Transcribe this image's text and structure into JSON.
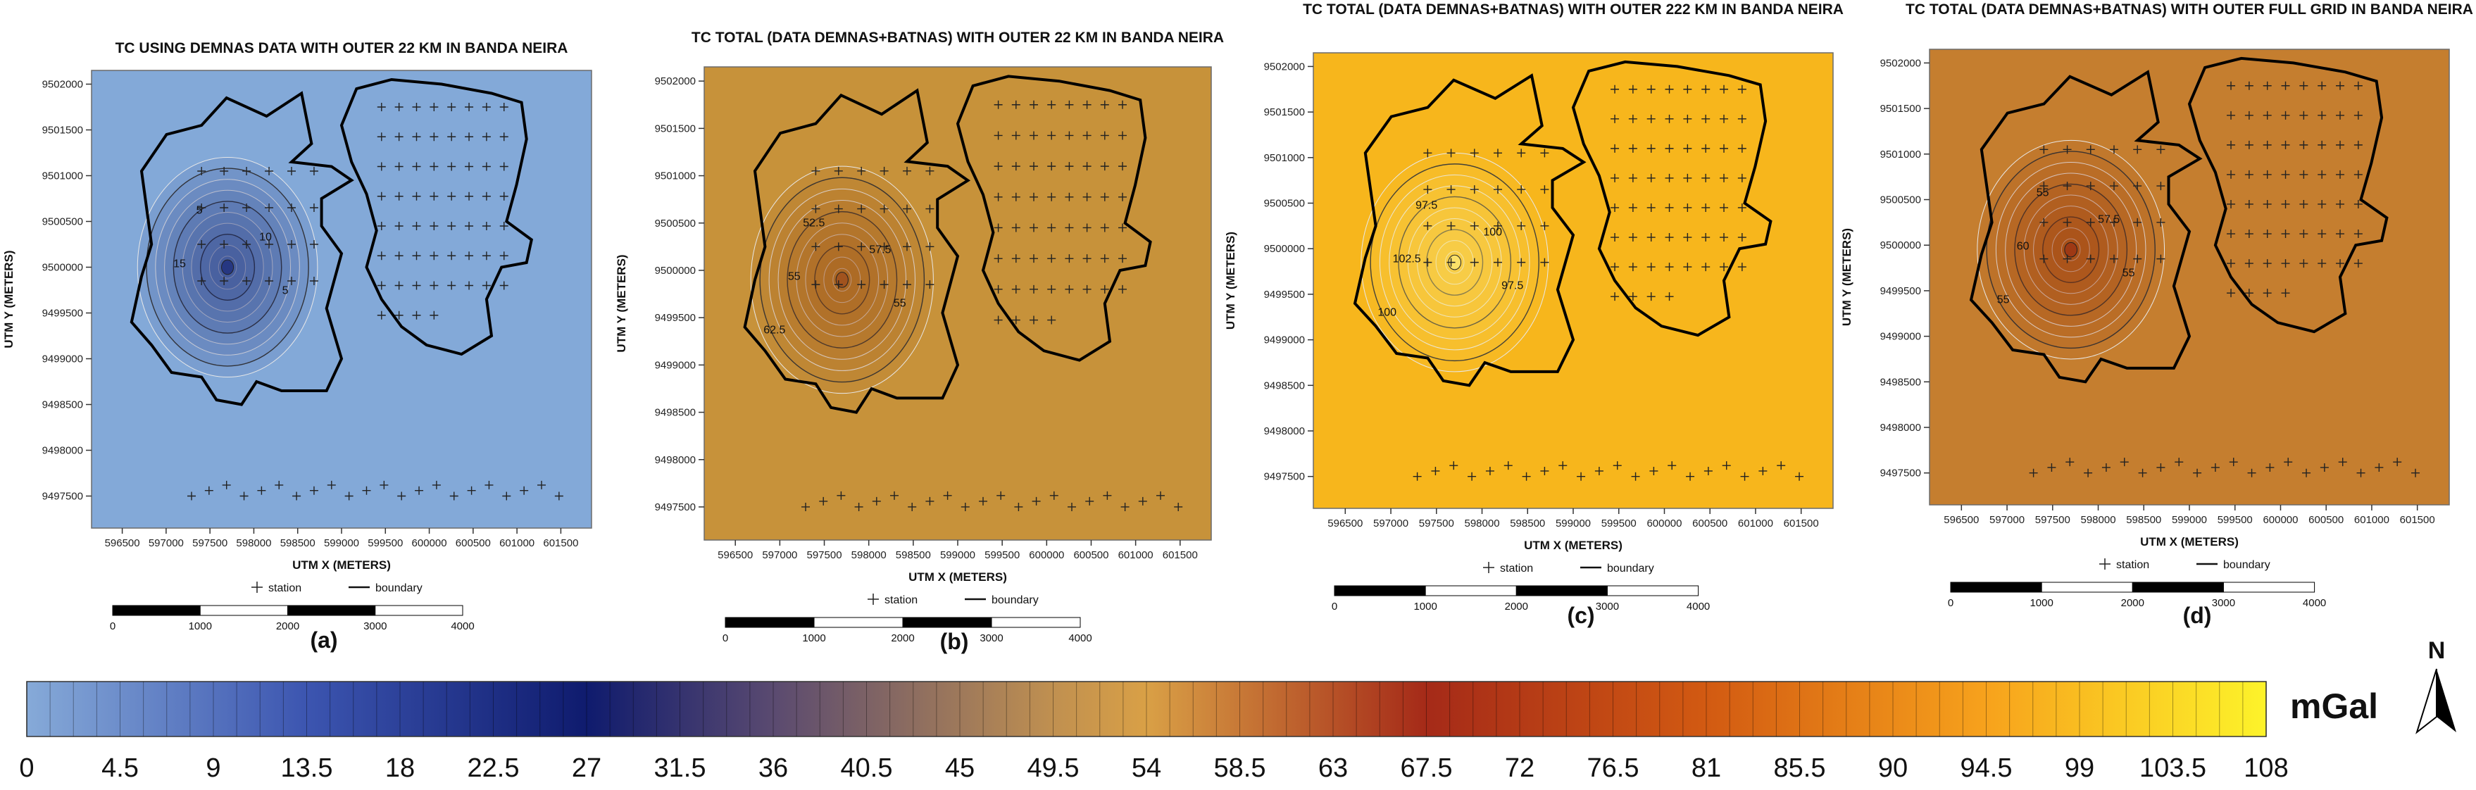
{
  "panels": [
    {
      "title": "TC USING DEMNAS DATA WITH OUTER 22 KM IN BANDA NEIRA",
      "xlabel": "UTM X (METERS)",
      "ylabel": "UTM Y (METERS)",
      "caption": "(a)",
      "bg": "#83a9d8",
      "accent": "#1a2878",
      "peak": {
        "x": 597700,
        "y": 9500000
      },
      "contours": [
        "5",
        "10",
        "15",
        "5"
      ],
      "legend_station": "station",
      "legend_boundary": "boundary",
      "scale_labels": [
        "0",
        "1000",
        "2000",
        "3000",
        "4000"
      ]
    },
    {
      "title": "TC TOTAL (DATA DEMNAS+BATNAS) WITH OUTER 22 KM IN BANDA NEIRA",
      "xlabel": "UTM X (METERS)",
      "ylabel": "UTM Y (METERS)",
      "caption": "(b)",
      "bg": "#c7923a",
      "accent": "#9c4a1d",
      "peak": {
        "x": 597700,
        "y": 9499900
      },
      "contours": [
        "52.5",
        "57.5",
        "55",
        "55",
        "62.5"
      ],
      "legend_station": "station",
      "legend_boundary": "boundary",
      "scale_labels": [
        "0",
        "1000",
        "2000",
        "3000",
        "4000"
      ]
    },
    {
      "title": "TC TOTAL (DATA DEMNAS+BATNAS) WITH OUTER 222 KM IN BANDA NEIRA",
      "xlabel": "UTM X (METERS)",
      "ylabel": "UTM Y (METERS)",
      "caption": "(c)",
      "bg": "#f7b61c",
      "accent": "#fde978",
      "peak": {
        "x": 597700,
        "y": 9499850
      },
      "contours": [
        "97.5",
        "100",
        "102.5",
        "97.5",
        "100"
      ],
      "legend_station": "station",
      "legend_boundary": "boundary",
      "scale_labels": [
        "0",
        "1000",
        "2000",
        "3000",
        "4000"
      ]
    },
    {
      "title": "TC TOTAL (DATA DEMNAS+BATNAS) WITH OUTER FULL GRID IN BANDA NEIRA",
      "xlabel": "UTM X (METERS)",
      "ylabel": "UTM Y (METERS)",
      "caption": "(d)",
      "bg": "#c57e2f",
      "accent": "#9a2f13",
      "peak": {
        "x": 597700,
        "y": 9499950
      },
      "contours": [
        "55",
        "57.5",
        "60",
        "55",
        "55"
      ],
      "legend_station": "station",
      "legend_boundary": "boundary",
      "scale_labels": [
        "0",
        "1000",
        "2000",
        "3000",
        "4000"
      ]
    }
  ],
  "chart_data": {
    "type": "heatmap",
    "x_ticks": [
      596500,
      597000,
      597500,
      598000,
      598500,
      599000,
      599500,
      600000,
      600500,
      601000,
      601500
    ],
    "y_ticks": [
      9497500,
      9498000,
      9498500,
      9499000,
      9499500,
      9500000,
      9500500,
      9501000,
      9501500,
      9502000
    ],
    "xlim": [
      596150,
      601850
    ],
    "ylim": [
      9497150,
      9502150
    ],
    "legend_station": "station",
    "legend_boundary": "boundary"
  },
  "colorbar": {
    "unit": "mGal",
    "north": "N",
    "min": 0,
    "max": 108,
    "labels": [
      "0",
      "4.5",
      "9",
      "13.5",
      "18",
      "22.5",
      "27",
      "31.5",
      "36",
      "40.5",
      "45",
      "49.5",
      "54",
      "58.5",
      "63",
      "67.5",
      "72",
      "76.5",
      "81",
      "85.5",
      "90",
      "94.5",
      "99",
      "103.5",
      "108"
    ],
    "colors": [
      "#86aad8",
      "#3c55b0",
      "#0f1b6e",
      "#5a4a70",
      "#c09050",
      "#d9a046",
      "#a52a18",
      "#d25a12",
      "#f7a21c",
      "#fdf32a"
    ],
    "stops": [
      0,
      13.5,
      27,
      36,
      49.5,
      54,
      67.5,
      81,
      94.5,
      108
    ]
  }
}
